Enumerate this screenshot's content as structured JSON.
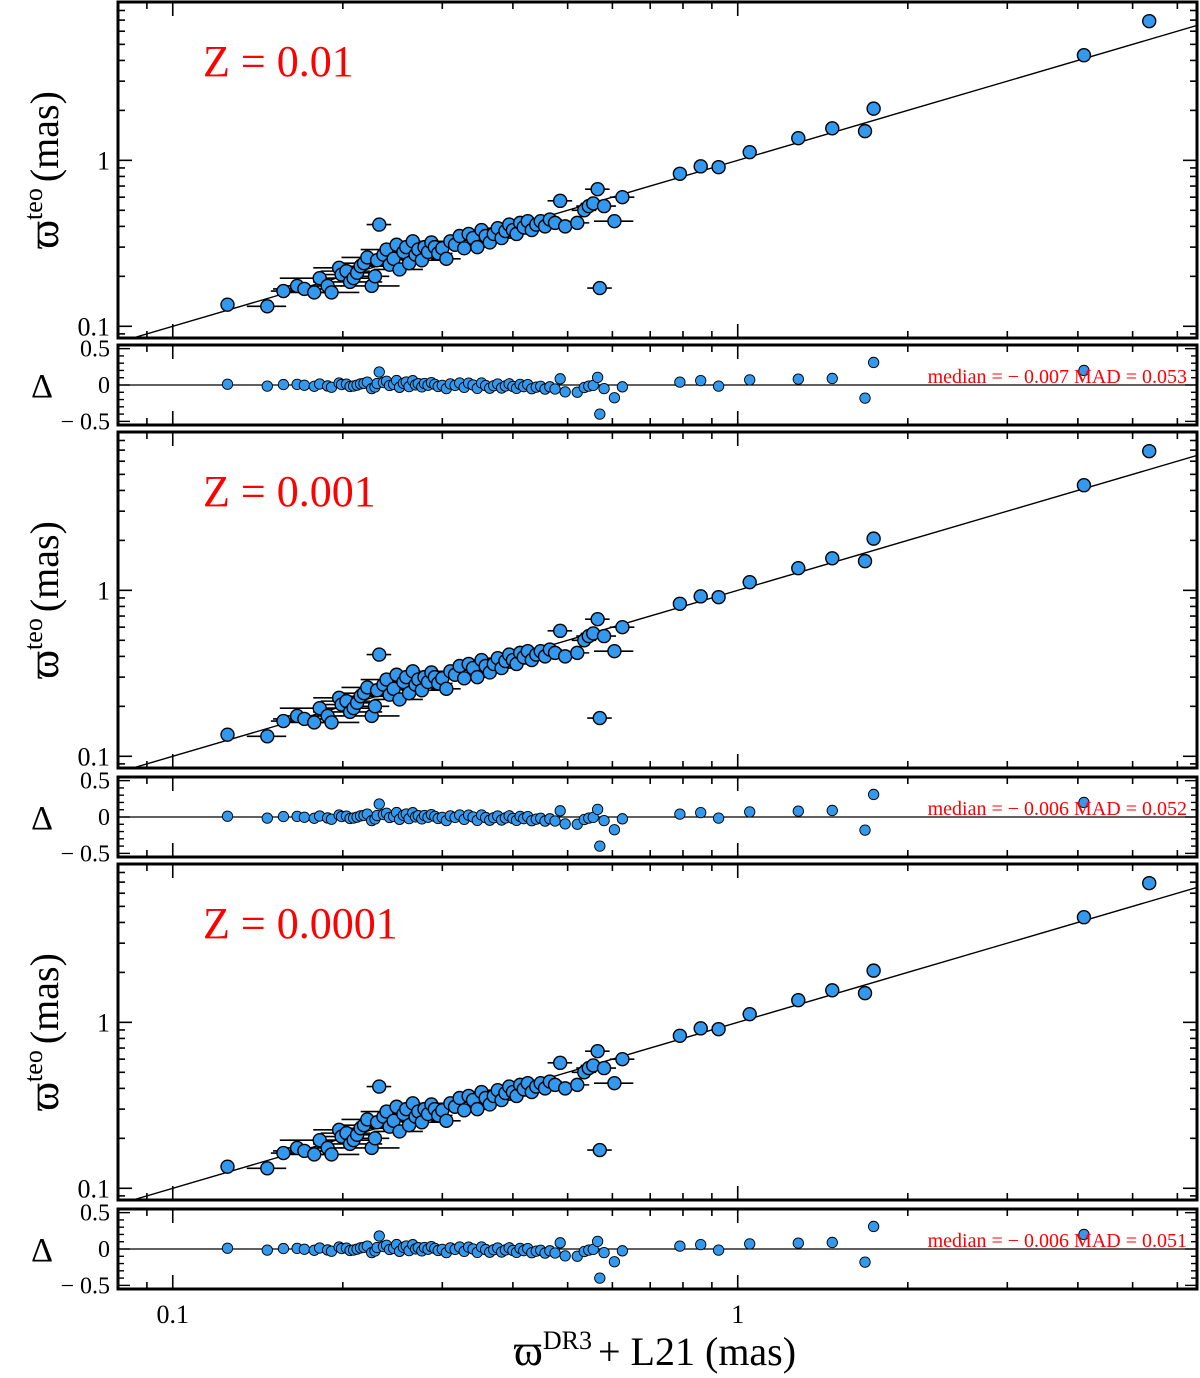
{
  "x_axis": {
    "title_symbol": "ϖ",
    "title_sup": "DR3",
    "title_rest": "+ L21 (mas)",
    "scale": "log",
    "lim": [
      0.08,
      6.5
    ],
    "ticks": [
      {
        "v": 0.1,
        "label": "0.1"
      },
      {
        "v": 1,
        "label": "1"
      }
    ]
  },
  "chart_data": [
    {
      "type": "scatter",
      "label": "Z = 0.01",
      "ylabel_symbol": "ϖ",
      "ylabel_sup": "teo",
      "ylabel_rest": "(mas)",
      "xscale": "log",
      "yscale": "log",
      "xlim": [
        0.08,
        6.5
      ],
      "ylim": [
        0.085,
        9.0
      ],
      "yticks": [
        {
          "v": 0.1,
          "label": "0.1"
        },
        {
          "v": 1,
          "label": "1"
        }
      ],
      "reference_line": "y = x",
      "residual_panel": {
        "ylabel": "Δ",
        "ylim": [
          -0.55,
          0.55
        ],
        "yticks": [
          {
            "v": 0.5,
            "label": "0.5"
          },
          {
            "v": 0,
            "label": "0"
          },
          {
            "v": -0.5,
            "label": "− 0.5"
          }
        ],
        "stats_text": "median = − 0.007 MAD = 0.053"
      }
    },
    {
      "type": "scatter",
      "label": "Z = 0.001",
      "ylabel_symbol": "ϖ",
      "ylabel_sup": "teo",
      "ylabel_rest": "(mas)",
      "xscale": "log",
      "yscale": "log",
      "xlim": [
        0.08,
        6.5
      ],
      "ylim": [
        0.085,
        9.0
      ],
      "yticks": [
        {
          "v": 0.1,
          "label": "0.1"
        },
        {
          "v": 1,
          "label": "1"
        }
      ],
      "reference_line": "y = x",
      "residual_panel": {
        "ylabel": "Δ",
        "ylim": [
          -0.55,
          0.55
        ],
        "yticks": [
          {
            "v": 0.5,
            "label": "0.5"
          },
          {
            "v": 0,
            "label": "0"
          },
          {
            "v": -0.5,
            "label": "− 0.5"
          }
        ],
        "stats_text": "median = − 0.006 MAD = 0.052"
      }
    },
    {
      "type": "scatter",
      "label": "Z = 0.0001",
      "ylabel_symbol": "ϖ",
      "ylabel_sup": "teo",
      "ylabel_rest": "(mas)",
      "xscale": "log",
      "yscale": "log",
      "xlim": [
        0.08,
        6.5
      ],
      "ylim": [
        0.085,
        9.0
      ],
      "yticks": [
        {
          "v": 0.1,
          "label": "0.1"
        },
        {
          "v": 1,
          "label": "1"
        }
      ],
      "reference_line": "y = x",
      "residual_panel": {
        "ylabel": "Δ",
        "ylim": [
          -0.55,
          0.55
        ],
        "yticks": [
          {
            "v": 0.5,
            "label": "0.5"
          },
          {
            "v": 0,
            "label": "0"
          },
          {
            "v": -0.5,
            "label": "− 0.5"
          }
        ],
        "stats_text": "median = − 0.006 MAD = 0.051"
      }
    }
  ],
  "points": [
    [
      0.125,
      0.135,
      0.005
    ],
    [
      0.147,
      0.132,
      0.01
    ],
    [
      0.157,
      0.163,
      0.012
    ],
    [
      0.166,
      0.175,
      0.01
    ],
    [
      0.171,
      0.168,
      0.012
    ],
    [
      0.178,
      0.16,
      0.012
    ],
    [
      0.182,
      0.195,
      0.015
    ],
    [
      0.188,
      0.175,
      0.015
    ],
    [
      0.191,
      0.16,
      0.01
    ],
    [
      0.197,
      0.225,
      0.02
    ],
    [
      0.199,
      0.205,
      0.02
    ],
    [
      0.203,
      0.215,
      0.02
    ],
    [
      0.206,
      0.185,
      0.01
    ],
    [
      0.209,
      0.195,
      0.015
    ],
    [
      0.212,
      0.21,
      0.015
    ],
    [
      0.215,
      0.23,
      0.018
    ],
    [
      0.218,
      0.24,
      0.02
    ],
    [
      0.221,
      0.26,
      0.018
    ],
    [
      0.225,
      0.175,
      0.015
    ],
    [
      0.228,
      0.2,
      0.015
    ],
    [
      0.23,
      0.25,
      0.018
    ],
    [
      0.232,
      0.41,
      0.015
    ],
    [
      0.236,
      0.27,
      0.02
    ],
    [
      0.239,
      0.29,
      0.02
    ],
    [
      0.242,
      0.235,
      0.015
    ],
    [
      0.246,
      0.255,
      0.02
    ],
    [
      0.249,
      0.31,
      0.02
    ],
    [
      0.252,
      0.22,
      0.015
    ],
    [
      0.256,
      0.28,
      0.02
    ],
    [
      0.259,
      0.3,
      0.02
    ],
    [
      0.262,
      0.24,
      0.015
    ],
    [
      0.266,
      0.325,
      0.02
    ],
    [
      0.269,
      0.27,
      0.018
    ],
    [
      0.272,
      0.29,
      0.018
    ],
    [
      0.276,
      0.25,
      0.018
    ],
    [
      0.279,
      0.3,
      0.02
    ],
    [
      0.283,
      0.28,
      0.018
    ],
    [
      0.287,
      0.32,
      0.02
    ],
    [
      0.291,
      0.3,
      0.02
    ],
    [
      0.295,
      0.275,
      0.018
    ],
    [
      0.3,
      0.295,
      0.02
    ],
    [
      0.305,
      0.255,
      0.018
    ],
    [
      0.31,
      0.325,
      0.02
    ],
    [
      0.316,
      0.31,
      0.02
    ],
    [
      0.322,
      0.35,
      0.018
    ],
    [
      0.328,
      0.295,
      0.018
    ],
    [
      0.334,
      0.36,
      0.018
    ],
    [
      0.34,
      0.34,
      0.018
    ],
    [
      0.346,
      0.3,
      0.018
    ],
    [
      0.352,
      0.38,
      0.02
    ],
    [
      0.358,
      0.35,
      0.018
    ],
    [
      0.364,
      0.32,
      0.018
    ],
    [
      0.37,
      0.36,
      0.02
    ],
    [
      0.376,
      0.39,
      0.02
    ],
    [
      0.382,
      0.34,
      0.018
    ],
    [
      0.388,
      0.375,
      0.02
    ],
    [
      0.394,
      0.41,
      0.02
    ],
    [
      0.4,
      0.38,
      0.02
    ],
    [
      0.406,
      0.36,
      0.02
    ],
    [
      0.412,
      0.42,
      0.02
    ],
    [
      0.418,
      0.395,
      0.018
    ],
    [
      0.425,
      0.43,
      0.02
    ],
    [
      0.432,
      0.38,
      0.018
    ],
    [
      0.44,
      0.41,
      0.02
    ],
    [
      0.448,
      0.43,
      0.02
    ],
    [
      0.456,
      0.4,
      0.02
    ],
    [
      0.465,
      0.44,
      0.02
    ],
    [
      0.475,
      0.42,
      0.02
    ],
    [
      0.485,
      0.57,
      0.02
    ],
    [
      0.495,
      0.4,
      0.02
    ],
    [
      0.52,
      0.42,
      0.02
    ],
    [
      0.535,
      0.5,
      0.02
    ],
    [
      0.545,
      0.53,
      0.02
    ],
    [
      0.555,
      0.55,
      0.02
    ],
    [
      0.565,
      0.67,
      0.02
    ],
    [
      0.57,
      0.17,
      0.01
    ],
    [
      0.58,
      0.53,
      0.02
    ],
    [
      0.605,
      0.43,
      0.02
    ],
    [
      0.625,
      0.6,
      0.02
    ],
    [
      0.79,
      0.83,
      0.02
    ],
    [
      0.86,
      0.92,
      0.02
    ],
    [
      0.925,
      0.91,
      0.02
    ],
    [
      1.05,
      1.12,
      0.02
    ],
    [
      1.28,
      1.36,
      0.02
    ],
    [
      1.47,
      1.56,
      0.02
    ],
    [
      1.68,
      1.5,
      0.02
    ],
    [
      1.74,
      2.05,
      0.02
    ],
    [
      4.1,
      4.3,
      0.02
    ],
    [
      5.35,
      6.9,
      0.02
    ]
  ],
  "point_xerr_rel": [
    0.02,
    0.08,
    0.05,
    0.05,
    0.12,
    0.1,
    0.15,
    0.06,
    0.12,
    0.1,
    0.08,
    0.1,
    0.14,
    0.12,
    0.08,
    0.1,
    0.08,
    0.1,
    0.12,
    0.06,
    0.08,
    0.05,
    0.06,
    0.1,
    0.08,
    0.06,
    0.06,
    0.1,
    0.08,
    0.1,
    0.06,
    0.06,
    0.08,
    0.05,
    0.08,
    0.05,
    0.06,
    0.08,
    0.05,
    0.06,
    0.05,
    0.06,
    0.05,
    0.06,
    0.05,
    0.05,
    0.06,
    0.05,
    0.06,
    0.05,
    0.05,
    0.06,
    0.05,
    0.05,
    0.05,
    0.06,
    0.05,
    0.05,
    0.05,
    0.05,
    0.05,
    0.05,
    0.05,
    0.05,
    0.05,
    0.05,
    0.05,
    0.05,
    0.05,
    0.05,
    0.05,
    0.05,
    0.05,
    0.05,
    0.05,
    0.05,
    0.05,
    0.08,
    0.05,
    0.02,
    0.02,
    0.02,
    0.02,
    0.02,
    0.02,
    0.02,
    0.02,
    0.02,
    0.02
  ]
}
